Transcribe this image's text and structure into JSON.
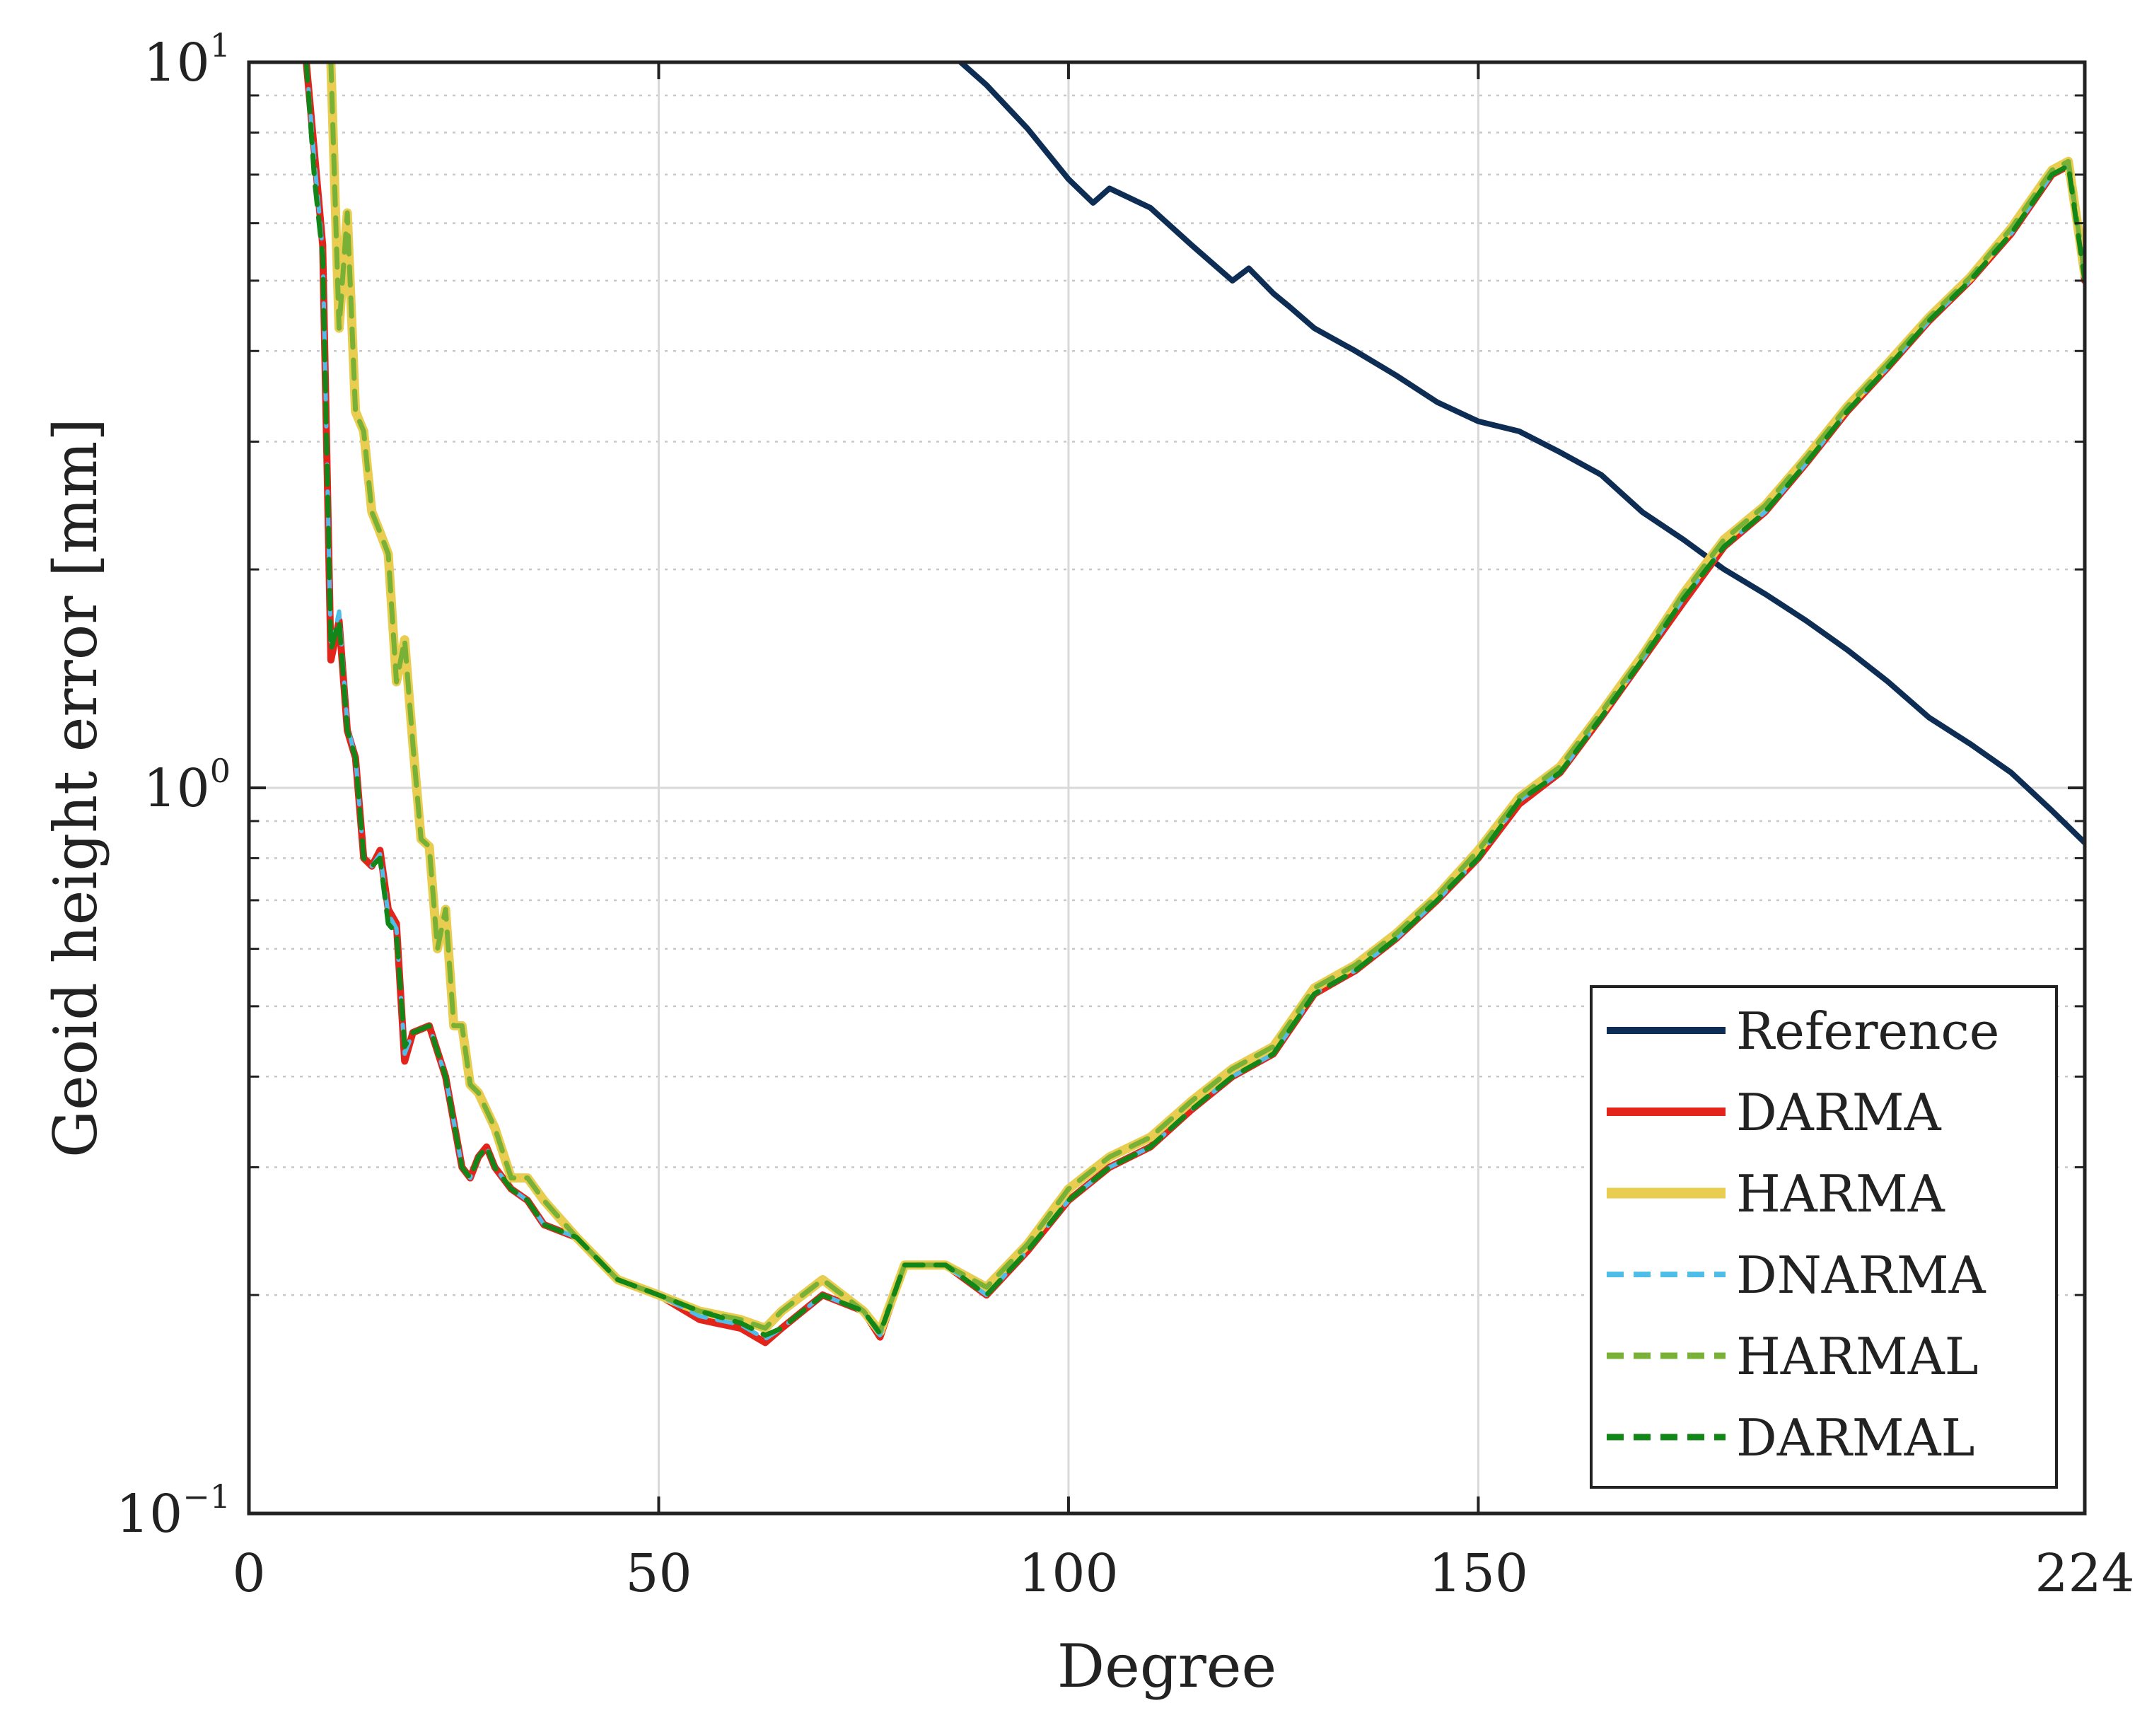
{
  "chart_data": {
    "type": "line",
    "title": "",
    "xlabel": "Degree",
    "ylabel": "Geoid height error [mm]",
    "yscale": "log",
    "xlim": [
      0,
      224
    ],
    "ylim": [
      0.1,
      10
    ],
    "grid": true,
    "legend_position": "bottom-right",
    "x_ticks": [
      {
        "value": 0,
        "label": "0"
      },
      {
        "value": 50,
        "label": "50"
      },
      {
        "value": 100,
        "label": "100"
      },
      {
        "value": 150,
        "label": "150"
      },
      {
        "value": 224,
        "label": "224"
      }
    ],
    "y_ticks": [
      {
        "value": 0.1,
        "base": "10",
        "exp": "−1"
      },
      {
        "value": 1,
        "base": "10",
        "exp": "0"
      },
      {
        "value": 10,
        "base": "10",
        "exp": "1"
      }
    ],
    "series": [
      {
        "name": "Reference",
        "color": "#0d2d55",
        "dash": "solid",
        "x": [
          86,
          90,
          95,
          100,
          103,
          105,
          110,
          115,
          120,
          122,
          125,
          127,
          130,
          135,
          140,
          145,
          150,
          155,
          160,
          165,
          170,
          175,
          180,
          185,
          190,
          195,
          200,
          205,
          210,
          215,
          220,
          224
        ],
        "y": [
          10.2,
          9.3,
          8.1,
          6.9,
          6.4,
          6.7,
          6.3,
          5.6,
          5.0,
          5.2,
          4.8,
          4.6,
          4.3,
          4.0,
          3.7,
          3.4,
          3.2,
          3.1,
          2.9,
          2.7,
          2.4,
          2.2,
          2.0,
          1.85,
          1.7,
          1.55,
          1.4,
          1.25,
          1.15,
          1.05,
          0.93,
          0.84
        ]
      },
      {
        "name": "DARMA",
        "color": "#e3241b",
        "dash": "solid",
        "x": [
          7,
          8,
          9,
          10,
          11,
          12,
          13,
          14,
          15,
          16,
          17,
          18,
          19,
          20,
          22,
          24,
          26,
          27,
          28,
          29,
          30,
          32,
          34,
          36,
          40,
          45,
          50,
          55,
          60,
          63,
          65,
          70,
          75,
          77,
          80,
          85,
          90,
          95,
          100,
          105,
          110,
          115,
          120,
          125,
          130,
          135,
          140,
          145,
          150,
          155,
          160,
          165,
          170,
          175,
          180,
          185,
          190,
          195,
          200,
          205,
          210,
          215,
          220,
          222,
          224
        ],
        "y": [
          10,
          7.5,
          5.6,
          1.5,
          1.7,
          1.2,
          1.1,
          0.8,
          0.78,
          0.82,
          0.68,
          0.65,
          0.42,
          0.46,
          0.47,
          0.4,
          0.3,
          0.29,
          0.31,
          0.32,
          0.3,
          0.28,
          0.27,
          0.25,
          0.24,
          0.21,
          0.2,
          0.185,
          0.18,
          0.172,
          0.18,
          0.2,
          0.19,
          0.175,
          0.22,
          0.22,
          0.2,
          0.23,
          0.27,
          0.3,
          0.32,
          0.36,
          0.4,
          0.43,
          0.52,
          0.56,
          0.62,
          0.7,
          0.8,
          0.95,
          1.05,
          1.25,
          1.5,
          1.8,
          2.15,
          2.4,
          2.8,
          3.3,
          3.8,
          4.4,
          5.0,
          5.8,
          7.0,
          7.2,
          5.0
        ]
      },
      {
        "name": "HARMA",
        "color": "#e8cd51",
        "dash": "solid",
        "x": [
          10,
          11,
          12,
          13,
          14,
          15,
          16,
          17,
          18,
          19,
          20,
          21,
          22,
          23,
          24,
          25,
          26,
          27,
          28,
          30,
          32,
          34,
          36,
          40,
          45,
          50,
          55,
          60,
          63,
          65,
          70,
          75,
          77,
          80,
          85,
          90,
          95,
          100,
          105,
          110,
          115,
          120,
          125,
          130,
          135,
          140,
          145,
          150,
          155,
          160,
          165,
          170,
          175,
          180,
          185,
          190,
          195,
          200,
          205,
          210,
          215,
          220,
          222,
          224
        ],
        "y": [
          10,
          4.3,
          6.2,
          3.3,
          3.1,
          2.4,
          2.25,
          2.1,
          1.4,
          1.6,
          1.15,
          0.85,
          0.83,
          0.6,
          0.68,
          0.47,
          0.47,
          0.39,
          0.38,
          0.34,
          0.29,
          0.29,
          0.27,
          0.24,
          0.21,
          0.2,
          0.19,
          0.185,
          0.18,
          0.19,
          0.21,
          0.19,
          0.178,
          0.22,
          0.22,
          0.205,
          0.235,
          0.28,
          0.31,
          0.33,
          0.37,
          0.41,
          0.44,
          0.53,
          0.57,
          0.63,
          0.71,
          0.82,
          0.97,
          1.07,
          1.27,
          1.52,
          1.85,
          2.2,
          2.45,
          2.85,
          3.35,
          3.85,
          4.45,
          5.05,
          5.9,
          7.1,
          7.3,
          5.1
        ]
      },
      {
        "name": "DNARMA",
        "color": "#4fbde8",
        "dash": "dashed",
        "x": [
          7,
          8,
          9,
          10,
          11,
          12,
          13,
          14,
          15,
          16,
          17,
          18,
          19,
          20,
          22,
          24,
          26,
          27,
          28,
          29,
          30,
          32,
          34,
          36,
          40,
          45,
          50,
          55,
          60,
          63,
          65,
          70,
          75,
          77,
          80,
          85,
          90,
          95,
          100,
          105,
          110,
          115,
          120,
          125,
          130,
          135,
          140,
          145,
          150,
          155,
          160,
          165,
          170,
          175,
          180,
          185,
          190,
          195,
          200,
          205,
          210,
          215,
          220,
          222,
          224
        ],
        "y": [
          10,
          7.3,
          5.5,
          1.55,
          1.75,
          1.22,
          1.1,
          0.8,
          0.78,
          0.81,
          0.67,
          0.64,
          0.43,
          0.46,
          0.47,
          0.4,
          0.3,
          0.29,
          0.31,
          0.32,
          0.3,
          0.28,
          0.27,
          0.25,
          0.24,
          0.21,
          0.2,
          0.187,
          0.182,
          0.174,
          0.18,
          0.2,
          0.19,
          0.176,
          0.22,
          0.22,
          0.2,
          0.23,
          0.27,
          0.3,
          0.32,
          0.36,
          0.4,
          0.43,
          0.52,
          0.56,
          0.62,
          0.7,
          0.8,
          0.96,
          1.05,
          1.25,
          1.5,
          1.82,
          2.15,
          2.4,
          2.8,
          3.3,
          3.8,
          4.4,
          5.0,
          5.8,
          7.0,
          7.2,
          5.0
        ]
      },
      {
        "name": "HARMAL",
        "color": "#78b135",
        "dash": "dashed",
        "x": [
          10,
          11,
          12,
          13,
          14,
          15,
          16,
          17,
          18,
          19,
          20,
          21,
          22,
          23,
          24,
          25,
          26,
          27,
          28,
          30,
          32,
          34,
          36,
          40,
          45,
          50,
          55,
          60,
          63,
          65,
          70,
          75,
          77,
          80,
          85,
          90,
          95,
          100,
          105,
          110,
          115,
          120,
          125,
          130,
          135,
          140,
          145,
          150,
          155,
          160,
          165,
          170,
          175,
          180,
          185,
          190,
          195,
          200,
          205,
          210,
          215,
          220,
          222,
          224
        ],
        "y": [
          10,
          4.3,
          6.2,
          3.3,
          3.1,
          2.4,
          2.25,
          2.1,
          1.4,
          1.6,
          1.15,
          0.85,
          0.83,
          0.6,
          0.68,
          0.47,
          0.47,
          0.39,
          0.38,
          0.34,
          0.29,
          0.29,
          0.27,
          0.24,
          0.21,
          0.2,
          0.19,
          0.185,
          0.18,
          0.19,
          0.21,
          0.19,
          0.178,
          0.22,
          0.22,
          0.205,
          0.235,
          0.28,
          0.31,
          0.33,
          0.37,
          0.41,
          0.44,
          0.53,
          0.57,
          0.63,
          0.71,
          0.82,
          0.97,
          1.07,
          1.27,
          1.52,
          1.85,
          2.2,
          2.45,
          2.85,
          3.35,
          3.85,
          4.45,
          5.05,
          5.9,
          7.1,
          7.3,
          5.1
        ]
      },
      {
        "name": "DARMAL",
        "color": "#13861a",
        "dash": "dashed",
        "x": [
          7,
          8,
          9,
          10,
          11,
          12,
          13,
          14,
          15,
          16,
          17,
          18,
          19,
          20,
          22,
          24,
          26,
          27,
          28,
          29,
          30,
          32,
          34,
          36,
          40,
          45,
          50,
          55,
          60,
          63,
          65,
          70,
          75,
          77,
          80,
          85,
          90,
          95,
          100,
          105,
          110,
          115,
          120,
          125,
          130,
          135,
          140,
          145,
          150,
          155,
          160,
          165,
          170,
          175,
          180,
          185,
          190,
          195,
          200,
          205,
          210,
          215,
          220,
          222,
          224
        ],
        "y": [
          10,
          6.9,
          5.4,
          1.55,
          1.7,
          1.2,
          1.1,
          0.8,
          0.78,
          0.8,
          0.65,
          0.63,
          0.44,
          0.46,
          0.47,
          0.4,
          0.3,
          0.29,
          0.31,
          0.32,
          0.3,
          0.28,
          0.27,
          0.25,
          0.24,
          0.21,
          0.2,
          0.19,
          0.183,
          0.176,
          0.18,
          0.2,
          0.19,
          0.177,
          0.22,
          0.22,
          0.2,
          0.23,
          0.27,
          0.3,
          0.32,
          0.36,
          0.4,
          0.43,
          0.52,
          0.56,
          0.62,
          0.7,
          0.8,
          0.96,
          1.05,
          1.25,
          1.5,
          1.82,
          2.15,
          2.4,
          2.8,
          3.3,
          3.8,
          4.4,
          5.0,
          5.8,
          7.0,
          7.2,
          5.0
        ]
      }
    ]
  }
}
